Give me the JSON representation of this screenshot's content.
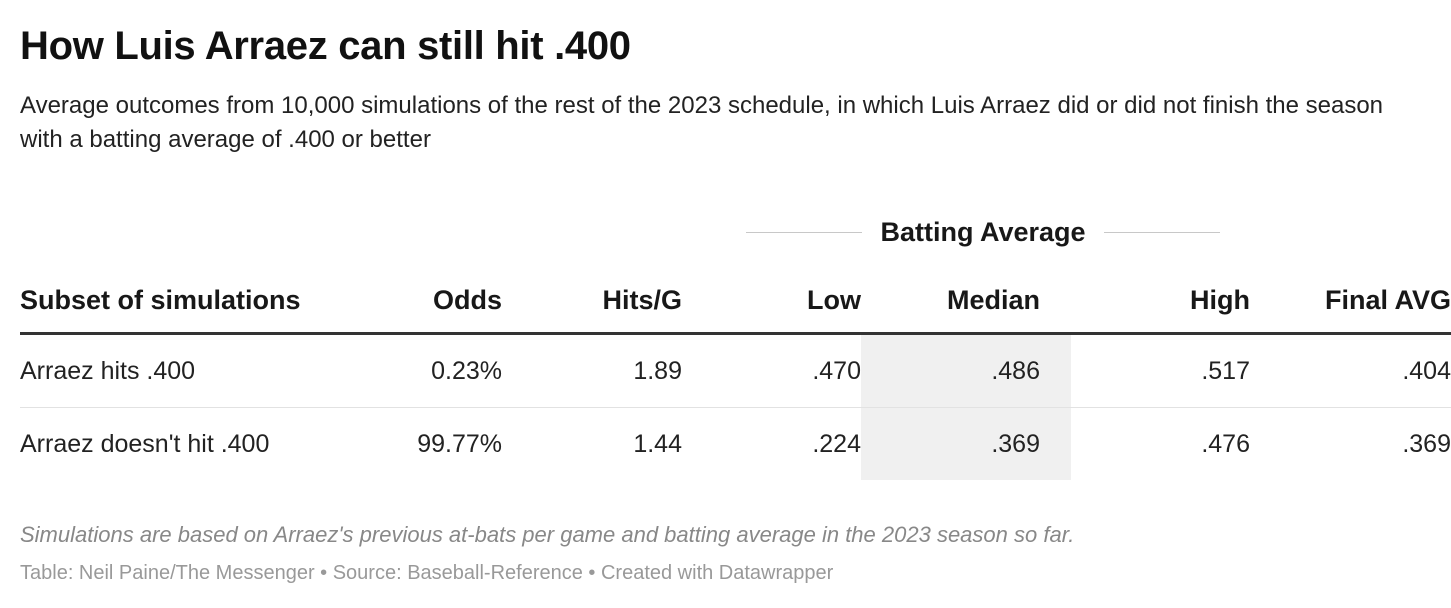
{
  "title": "How Luis Arraez can still hit .400",
  "subtitle": "Average outcomes from 10,000 simulations of the rest of the 2023 schedule, in which Luis Arraez did or did not finish the season with a batting average of .400 or better",
  "spanner_label": "Batting Average",
  "columns": {
    "subset": "Subset of simulations",
    "odds": "Odds",
    "hits": "Hits/G",
    "low": "Low",
    "median": "Median",
    "high": "High",
    "final": "Final AVG"
  },
  "highlight_color": "#f0f0f0",
  "chart_data": {
    "type": "table",
    "title": "How Luis Arraez can still hit .400",
    "column_group": {
      "label": "Batting Average",
      "columns": [
        "Low",
        "Median",
        "High"
      ]
    },
    "highlighted_column": "Median",
    "columns": [
      "Subset of simulations",
      "Odds",
      "Hits/G",
      "Low",
      "Median",
      "High",
      "Final AVG"
    ],
    "rows": [
      {
        "subset": "Arraez hits .400",
        "odds": "0.23%",
        "hits": "1.89",
        "low": ".470",
        "median": ".486",
        "high": ".517",
        "final": ".404"
      },
      {
        "subset": "Arraez doesn't hit .400",
        "odds": "99.77%",
        "hits": "1.44",
        "low": ".224",
        "median": ".369",
        "high": ".476",
        "final": ".369"
      }
    ]
  },
  "notes": "Simulations are based on Arraez's previous at-bats per game and batting average in the 2023 season so far.",
  "credit": "Table: Neil Paine/The Messenger • Source: Baseball-Reference • Created with Datawrapper"
}
